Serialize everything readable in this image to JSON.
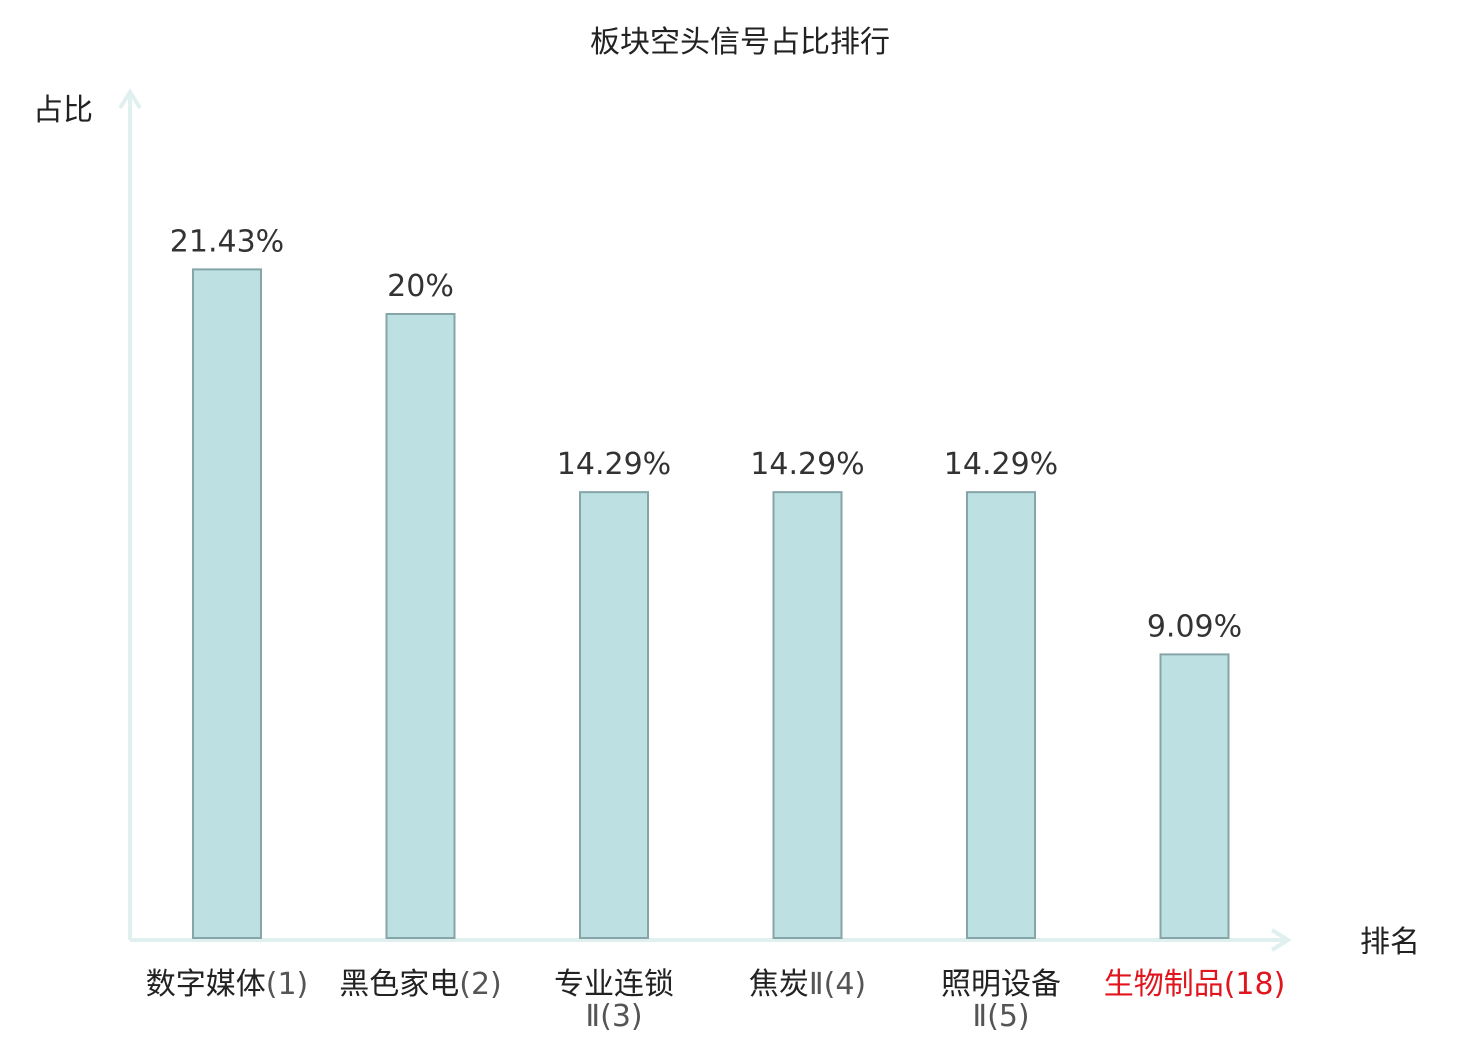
{
  "chart_data": {
    "type": "bar",
    "title": "板块空头信号占比排行",
    "ylabel": "占比",
    "xlabel": "排名",
    "ylim": [
      0,
      25
    ],
    "grid": false,
    "categories": [
      [
        "数字媒体",
        "(1)"
      ],
      [
        "黑色家电",
        "(2)"
      ],
      [
        "专业连锁",
        "Ⅱ(3)"
      ],
      [
        "焦炭",
        "Ⅱ(4)"
      ],
      [
        "照明设备",
        "Ⅱ(5)"
      ],
      [
        "生物制品",
        "(18)"
      ]
    ],
    "values": [
      21.43,
      20,
      14.29,
      14.29,
      14.29,
      9.09
    ],
    "value_labels": [
      "21.43%",
      "20%",
      "14.29%",
      "14.29%",
      "14.29%",
      "9.09%"
    ],
    "highlight_index": 5
  },
  "colors": {
    "bar_fill": "#bde0e3",
    "bar_stroke": "#86a5a8",
    "axis": "#dff0ee",
    "text": "#222222",
    "value_text": "#333333",
    "rank_text": "#555555",
    "highlight": "#e0151d"
  }
}
